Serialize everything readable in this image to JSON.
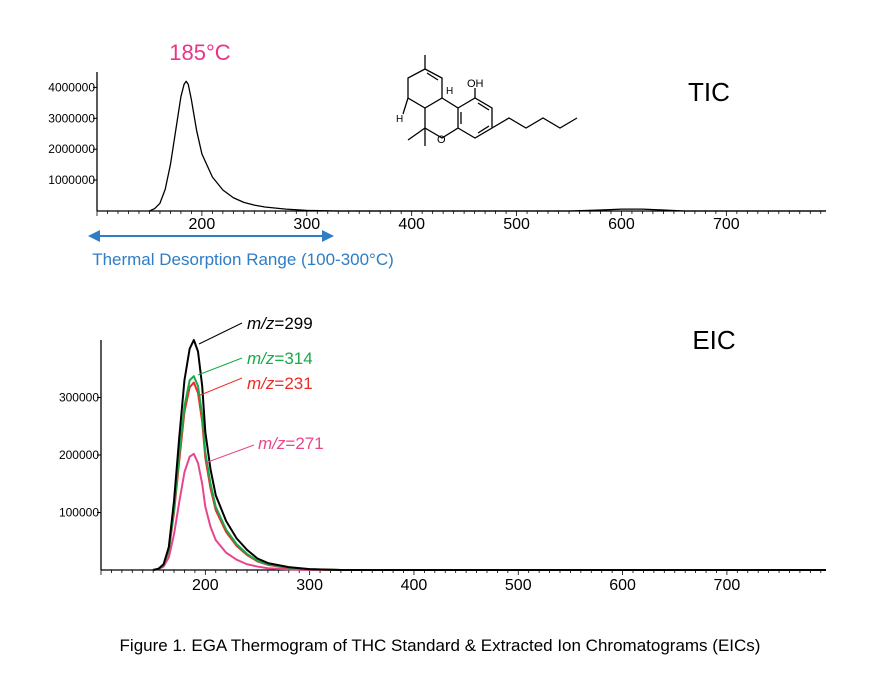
{
  "chart_data": [
    {
      "type": "line",
      "label": "TIC",
      "peak_annotation": "185°C",
      "range_annotation": "Thermal Desorption Range (100-300°C)",
      "range_span": [
        100,
        300
      ],
      "xlim": [
        100,
        795
      ],
      "ylim": [
        0,
        4500000
      ],
      "x_ticks": [
        200,
        300,
        400,
        500,
        600,
        700
      ],
      "x_tick_labels": [
        "200",
        "300",
        "400",
        "500",
        "600",
        "700"
      ],
      "y_ticks": [
        1000000,
        2000000,
        3000000,
        4000000
      ],
      "y_tick_labels": [
        "1000000",
        "2000000",
        "3000000",
        "4000000"
      ],
      "structure_labels": {
        "oh": "OH",
        "h1": "H",
        "h2": "H",
        "o": "O"
      },
      "series": [
        {
          "color": "#000000",
          "x": [
            150,
            155,
            160,
            165,
            170,
            175,
            180,
            183,
            185,
            187,
            190,
            195,
            200,
            210,
            220,
            230,
            240,
            250,
            260,
            280,
            300,
            330,
            360,
            400,
            450,
            500,
            550,
            580,
            600,
            620,
            640,
            660,
            700,
            795
          ],
          "y": [
            0,
            80000,
            250000,
            700000,
            1500000,
            2600000,
            3700000,
            4100000,
            4200000,
            4100000,
            3600000,
            2600000,
            1850000,
            1100000,
            680000,
            430000,
            280000,
            190000,
            130000,
            60000,
            20000,
            0,
            0,
            0,
            0,
            0,
            0,
            30000,
            60000,
            60000,
            30000,
            0,
            0,
            0
          ]
        }
      ]
    },
    {
      "type": "line",
      "label": "EIC",
      "xlim": [
        100,
        795
      ],
      "ylim": [
        0,
        400000
      ],
      "x_ticks": [
        200,
        300,
        400,
        500,
        600,
        700
      ],
      "x_tick_labels": [
        "200",
        "300",
        "400",
        "500",
        "600",
        "700"
      ],
      "y_ticks": [
        100000,
        200000,
        300000
      ],
      "y_tick_labels": [
        "100000",
        "200000",
        "300000"
      ],
      "series": [
        {
          "name_prefix": "m/z",
          "name_value": "=299",
          "color": "#000000",
          "x": [
            150,
            155,
            160,
            165,
            170,
            175,
            180,
            185,
            189,
            193,
            197,
            200,
            205,
            210,
            220,
            230,
            240,
            250,
            260,
            280,
            300,
            330,
            795
          ],
          "y": [
            0,
            2000,
            10000,
            40000,
            120000,
            230000,
            330000,
            385000,
            400000,
            380000,
            320000,
            240000,
            175000,
            130000,
            85000,
            55000,
            35000,
            20000,
            12000,
            5000,
            1500,
            0,
            0
          ]
        },
        {
          "name_prefix": "m/z",
          "name_value": "=314",
          "color": "#19a84a",
          "x": [
            150,
            155,
            160,
            165,
            170,
            175,
            180,
            185,
            189,
            193,
            197,
            200,
            205,
            210,
            220,
            230,
            240,
            250,
            260,
            280,
            300,
            330,
            795
          ],
          "y": [
            0,
            2000,
            9000,
            35000,
            105000,
            200000,
            285000,
            330000,
            337000,
            320000,
            270000,
            205000,
            150000,
            110000,
            70000,
            45000,
            28000,
            16000,
            10000,
            4000,
            1200,
            0,
            0
          ]
        },
        {
          "name_prefix": "m/z",
          "name_value": "=231",
          "color": "#ee2b24",
          "x": [
            150,
            155,
            160,
            165,
            170,
            175,
            180,
            185,
            189,
            193,
            197,
            200,
            205,
            210,
            220,
            230,
            240,
            250,
            260,
            280,
            300,
            330,
            795
          ],
          "y": [
            0,
            2000,
            8500,
            33000,
            100000,
            190000,
            275000,
            318000,
            326000,
            308000,
            258000,
            195000,
            142000,
            104000,
            66000,
            42000,
            26000,
            15000,
            9000,
            3500,
            1000,
            0,
            0
          ]
        },
        {
          "name_prefix": "m/z",
          "name_value": "=271",
          "color": "#e8468c",
          "x": [
            150,
            155,
            160,
            165,
            170,
            175,
            180,
            185,
            189,
            193,
            197,
            200,
            205,
            210,
            220,
            230,
            240,
            250,
            260,
            280,
            300,
            330,
            795
          ],
          "y": [
            0,
            1500,
            6000,
            22000,
            62000,
            118000,
            170000,
            197000,
            202000,
            186000,
            150000,
            110000,
            75000,
            52000,
            30000,
            18000,
            10000,
            6000,
            3000,
            1000,
            0,
            0,
            0
          ]
        }
      ]
    }
  ],
  "caption": "Figure 1. EGA Thermogram of THC Standard & Extracted Ion Chromatograms (EICs)"
}
